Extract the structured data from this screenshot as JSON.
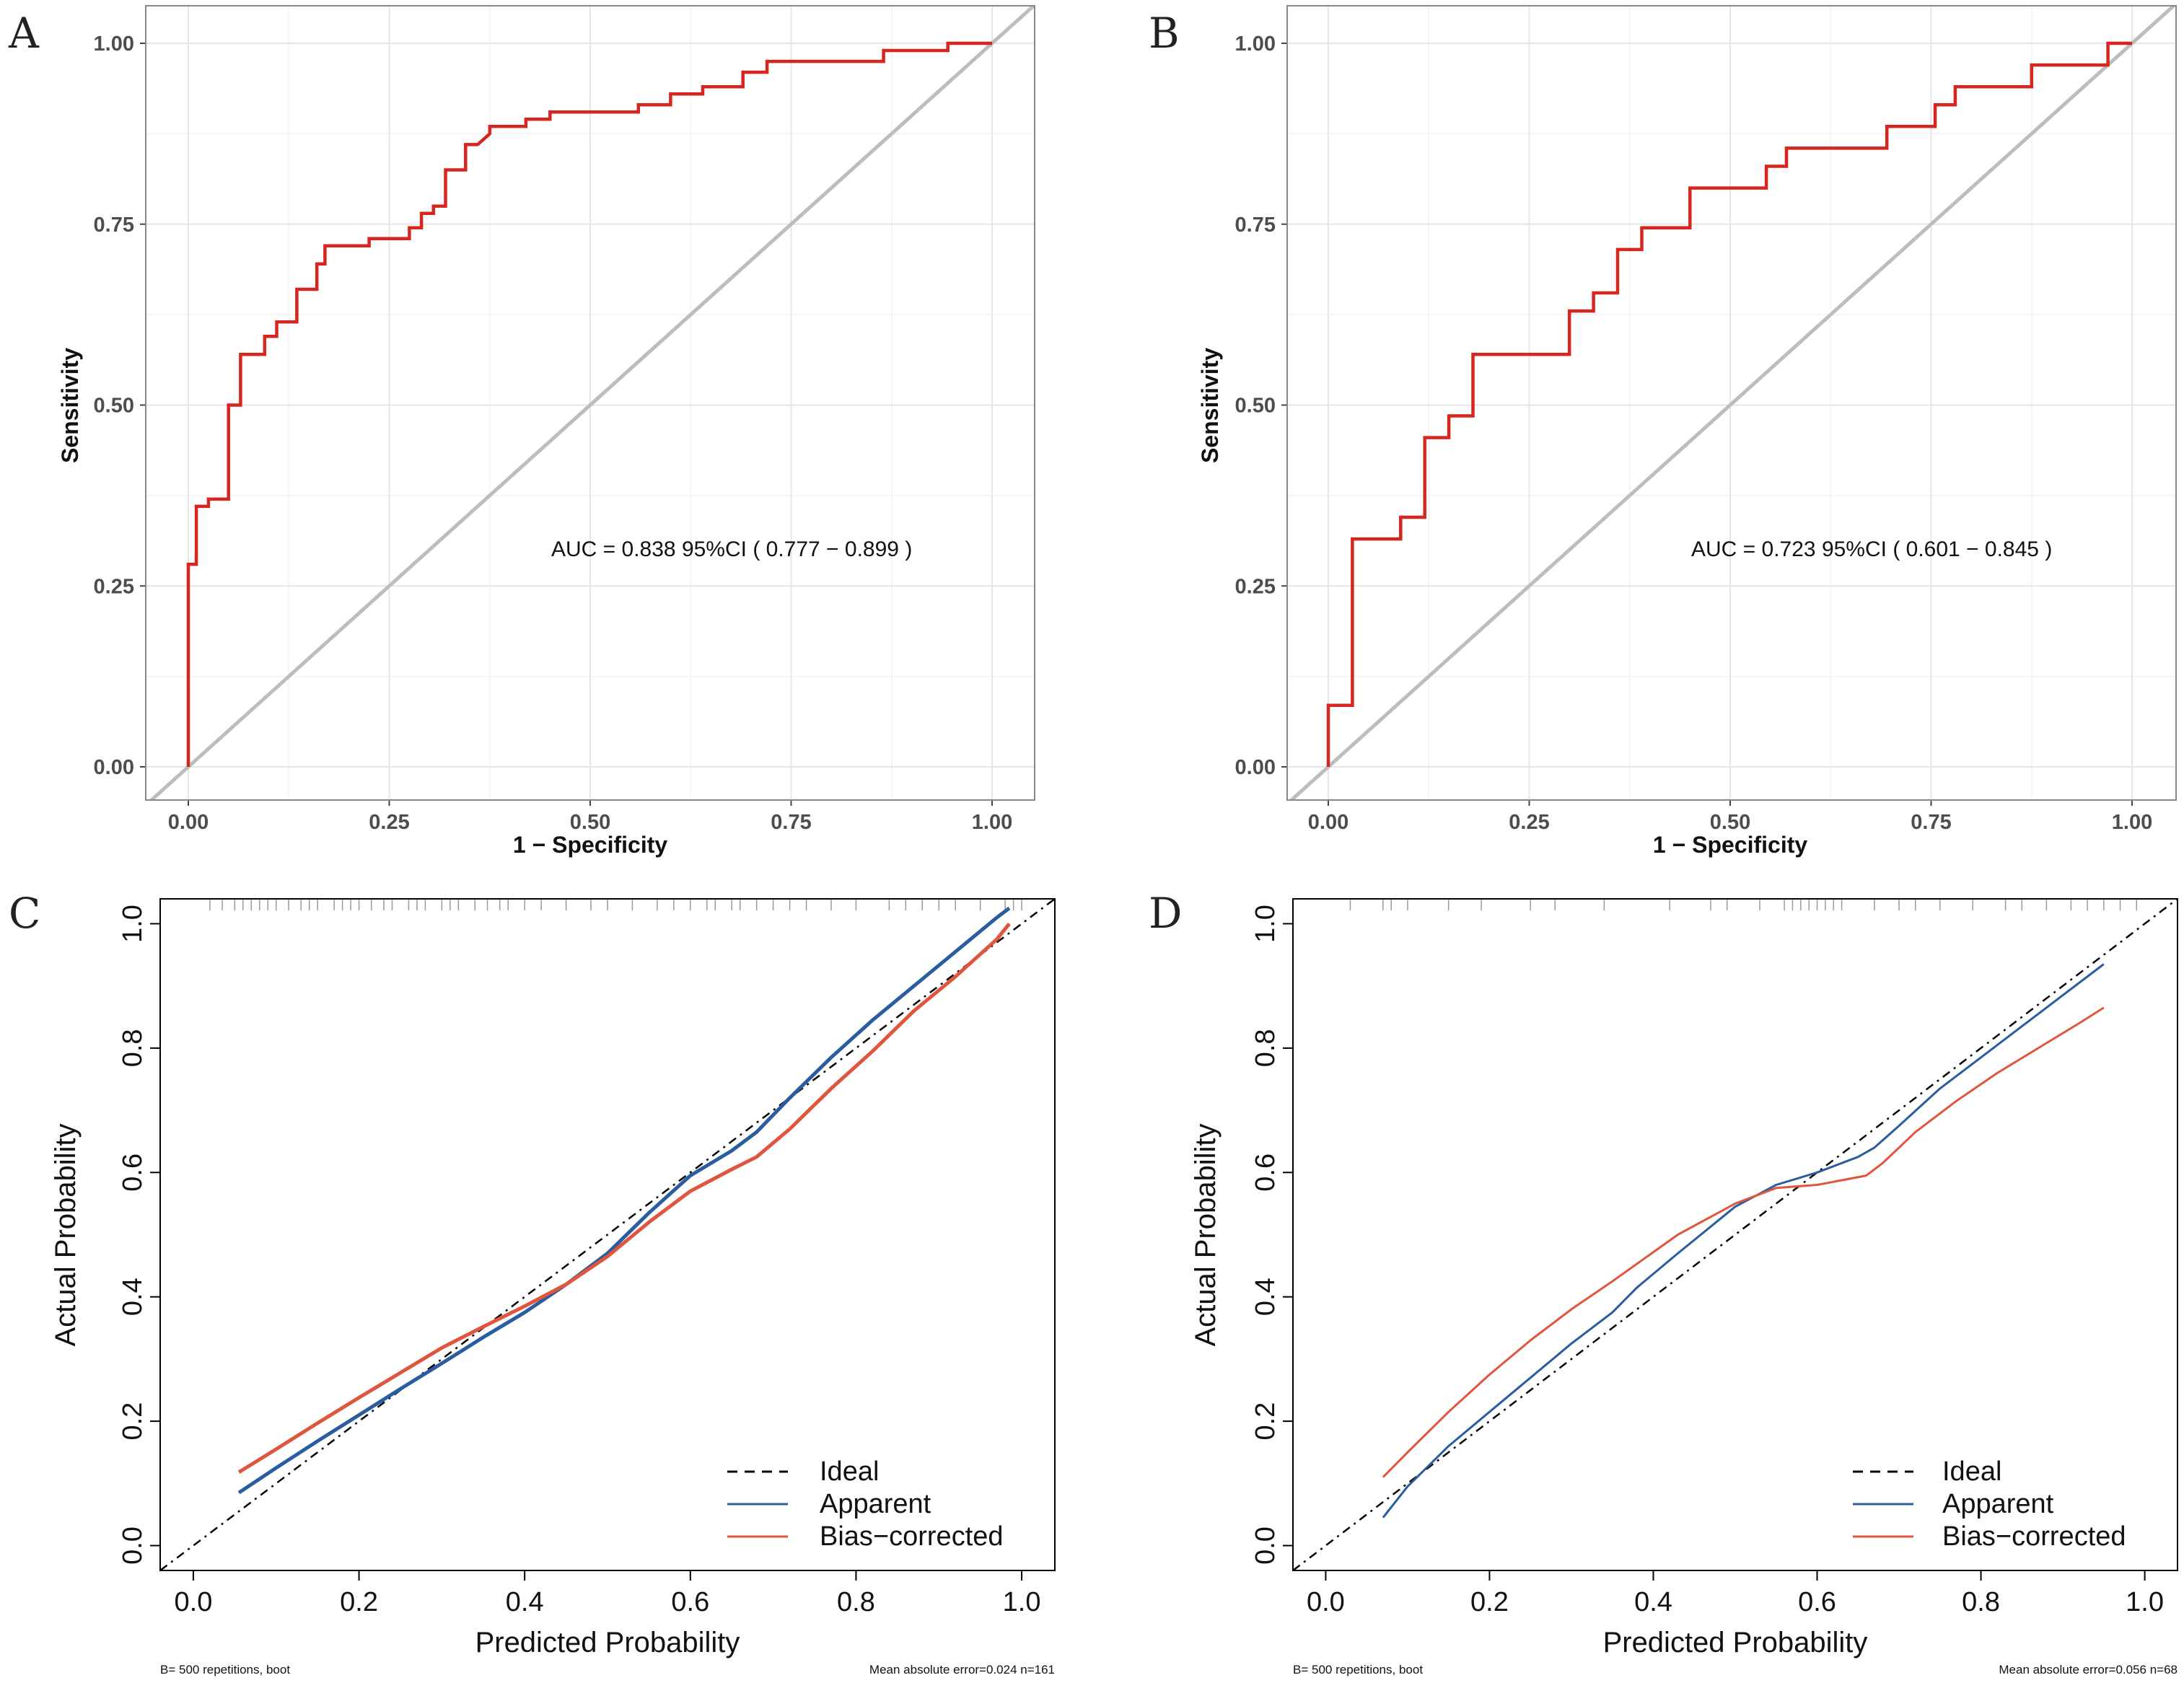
{
  "colors": {
    "roc_curve": "#d7251f",
    "diagonal": "#bdbdbd",
    "grid_major": "#e6e6e6",
    "grid_minor": "#f2f2f2",
    "panel_border": "#888888",
    "axis_text": "#4d4d4d",
    "apparent": "#2a5d9f",
    "bias_corrected": "#e0553d",
    "ideal": "#000000",
    "rug": "#999999"
  },
  "chart_data": [
    {
      "id": "A",
      "type": "line",
      "panel_letter": "A",
      "xlabel": "1 − Specificity",
      "ylabel": "Sensitivity",
      "xlim": [
        0,
        1
      ],
      "ylim": [
        0,
        1
      ],
      "ticks": [
        "0.00",
        "0.25",
        "0.50",
        "0.75",
        "1.00"
      ],
      "annotation": "AUC = 0.838 95%CI ( 0.777 − 0.899 )",
      "series": [
        {
          "name": "ROC",
          "x": [
            0,
            0,
            0.01,
            0.01,
            0.025,
            0.025,
            0.05,
            0.05,
            0.065,
            0.065,
            0.095,
            0.095,
            0.11,
            0.11,
            0.135,
            0.135,
            0.16,
            0.16,
            0.17,
            0.17,
            0.225,
            0.225,
            0.275,
            0.275,
            0.29,
            0.29,
            0.305,
            0.305,
            0.32,
            0.32,
            0.345,
            0.345,
            0.36,
            0.365,
            0.375,
            0.375,
            0.42,
            0.42,
            0.45,
            0.45,
            0.56,
            0.56,
            0.6,
            0.6,
            0.64,
            0.64,
            0.69,
            0.69,
            0.72,
            0.72,
            0.865,
            0.865,
            0.945,
            0.945,
            1.0
          ],
          "y": [
            0,
            0.28,
            0.28,
            0.36,
            0.36,
            0.37,
            0.37,
            0.5,
            0.5,
            0.57,
            0.57,
            0.595,
            0.595,
            0.615,
            0.615,
            0.66,
            0.66,
            0.695,
            0.695,
            0.72,
            0.72,
            0.73,
            0.73,
            0.745,
            0.745,
            0.765,
            0.765,
            0.775,
            0.775,
            0.825,
            0.825,
            0.86,
            0.86,
            0.865,
            0.875,
            0.885,
            0.885,
            0.895,
            0.895,
            0.905,
            0.905,
            0.915,
            0.915,
            0.93,
            0.93,
            0.94,
            0.94,
            0.96,
            0.96,
            0.975,
            0.975,
            0.99,
            0.99,
            1.0,
            1.0
          ]
        },
        {
          "name": "Reference",
          "x": [
            0,
            1
          ],
          "y": [
            0,
            1
          ]
        }
      ]
    },
    {
      "id": "B",
      "type": "line",
      "panel_letter": "B",
      "xlabel": "1 − Specificity",
      "ylabel": "Sensitivity",
      "xlim": [
        0,
        1
      ],
      "ylim": [
        0,
        1
      ],
      "ticks": [
        "0.00",
        "0.25",
        "0.50",
        "0.75",
        "1.00"
      ],
      "annotation": "AUC = 0.723 95%CI ( 0.601 − 0.845 )",
      "series": [
        {
          "name": "ROC",
          "x": [
            0,
            0,
            0.03,
            0.03,
            0.09,
            0.09,
            0.12,
            0.12,
            0.15,
            0.15,
            0.18,
            0.18,
            0.3,
            0.3,
            0.33,
            0.33,
            0.36,
            0.36,
            0.39,
            0.39,
            0.45,
            0.45,
            0.545,
            0.545,
            0.57,
            0.57,
            0.695,
            0.695,
            0.755,
            0.755,
            0.78,
            0.78,
            0.875,
            0.875,
            0.97,
            0.97,
            1.0
          ],
          "y": [
            0,
            0.085,
            0.085,
            0.315,
            0.315,
            0.345,
            0.345,
            0.455,
            0.455,
            0.485,
            0.485,
            0.57,
            0.57,
            0.63,
            0.63,
            0.655,
            0.655,
            0.715,
            0.715,
            0.745,
            0.745,
            0.8,
            0.8,
            0.83,
            0.83,
            0.855,
            0.855,
            0.885,
            0.885,
            0.915,
            0.915,
            0.94,
            0.94,
            0.97,
            0.97,
            1.0,
            1.0
          ]
        },
        {
          "name": "Reference",
          "x": [
            0,
            1
          ],
          "y": [
            0,
            1
          ]
        }
      ]
    },
    {
      "id": "C",
      "type": "line",
      "panel_letter": "C",
      "xlabel": "Predicted Probability",
      "ylabel": "Actual Probability",
      "xlim": [
        -0.04,
        1.04
      ],
      "ylim": [
        -0.04,
        1.04
      ],
      "ticks": [
        "0.0",
        "0.2",
        "0.4",
        "0.6",
        "0.8",
        "1.0"
      ],
      "legend": [
        "Ideal",
        "Apparent",
        "Bias−corrected"
      ],
      "legend_position": "bottom-right",
      "footer_left": "B= 500 repetitions, boot",
      "footer_right": "Mean absolute error=0.024 n=161",
      "rug": [
        0.02,
        0.035,
        0.05,
        0.06,
        0.07,
        0.08,
        0.09,
        0.1,
        0.115,
        0.13,
        0.14,
        0.15,
        0.17,
        0.18,
        0.19,
        0.2,
        0.215,
        0.23,
        0.24,
        0.26,
        0.27,
        0.28,
        0.3,
        0.31,
        0.32,
        0.34,
        0.355,
        0.37,
        0.38,
        0.4,
        0.42,
        0.45,
        0.48,
        0.5,
        0.53,
        0.56,
        0.58,
        0.6,
        0.62,
        0.63,
        0.65,
        0.66,
        0.68,
        0.7,
        0.72,
        0.74,
        0.77,
        0.8,
        0.84,
        0.86,
        0.88,
        0.9,
        0.92,
        0.95,
        0.98,
        0.99,
        1.0
      ],
      "series": [
        {
          "name": "Ideal",
          "x": [
            -0.04,
            1.04
          ],
          "y": [
            -0.04,
            1.04
          ]
        },
        {
          "name": "Apparent",
          "x": [
            0.055,
            0.1,
            0.15,
            0.2,
            0.25,
            0.3,
            0.35,
            0.4,
            0.45,
            0.5,
            0.55,
            0.6,
            0.65,
            0.68,
            0.72,
            0.77,
            0.82,
            0.87,
            0.92,
            0.97,
            0.985
          ],
          "y": [
            0.085,
            0.125,
            0.168,
            0.21,
            0.252,
            0.293,
            0.335,
            0.375,
            0.42,
            0.47,
            0.535,
            0.595,
            0.635,
            0.665,
            0.72,
            0.785,
            0.845,
            0.9,
            0.955,
            1.01,
            1.025
          ]
        },
        {
          "name": "Bias−corrected",
          "x": [
            0.055,
            0.1,
            0.15,
            0.2,
            0.25,
            0.3,
            0.35,
            0.4,
            0.45,
            0.5,
            0.55,
            0.6,
            0.65,
            0.68,
            0.72,
            0.77,
            0.82,
            0.87,
            0.92,
            0.97,
            0.985
          ],
          "y": [
            0.118,
            0.155,
            0.197,
            0.238,
            0.278,
            0.318,
            0.352,
            0.385,
            0.42,
            0.465,
            0.52,
            0.57,
            0.605,
            0.625,
            0.67,
            0.735,
            0.795,
            0.86,
            0.915,
            0.975,
            1.0
          ]
        }
      ]
    },
    {
      "id": "D",
      "type": "line",
      "panel_letter": "D",
      "xlabel": "Predicted Probability",
      "ylabel": "Actual Probability",
      "xlim": [
        -0.04,
        1.04
      ],
      "ylim": [
        -0.04,
        1.04
      ],
      "ticks": [
        "0.0",
        "0.2",
        "0.4",
        "0.6",
        "0.8",
        "1.0"
      ],
      "legend": [
        "Ideal",
        "Apparent",
        "Bias−corrected"
      ],
      "legend_position": "bottom-right",
      "footer_left": "B= 500 repetitions, boot",
      "footer_right": "Mean absolute error=0.056 n=68",
      "rug": [
        0.03,
        0.07,
        0.08,
        0.1,
        0.15,
        0.19,
        0.25,
        0.28,
        0.34,
        0.42,
        0.47,
        0.49,
        0.53,
        0.56,
        0.57,
        0.58,
        0.59,
        0.6,
        0.61,
        0.62,
        0.63,
        0.67,
        0.7,
        0.72,
        0.75,
        0.79,
        0.83,
        0.85,
        0.88,
        0.91,
        0.93,
        0.95,
        0.97,
        0.99
      ],
      "series": [
        {
          "name": "Ideal",
          "x": [
            -0.04,
            1.04
          ],
          "y": [
            -0.04,
            1.04
          ]
        },
        {
          "name": "Apparent",
          "x": [
            0.07,
            0.1,
            0.15,
            0.2,
            0.25,
            0.3,
            0.35,
            0.38,
            0.43,
            0.5,
            0.55,
            0.6,
            0.65,
            0.67,
            0.7,
            0.75,
            0.8,
            0.85,
            0.9,
            0.95
          ],
          "y": [
            0.045,
            0.095,
            0.16,
            0.215,
            0.27,
            0.325,
            0.375,
            0.415,
            0.47,
            0.545,
            0.58,
            0.6,
            0.625,
            0.64,
            0.675,
            0.735,
            0.785,
            0.835,
            0.885,
            0.935
          ]
        },
        {
          "name": "Bias−corrected",
          "x": [
            0.07,
            0.1,
            0.15,
            0.2,
            0.25,
            0.3,
            0.35,
            0.43,
            0.5,
            0.55,
            0.6,
            0.66,
            0.68,
            0.72,
            0.77,
            0.82,
            0.87,
            0.92,
            0.95
          ],
          "y": [
            0.11,
            0.15,
            0.215,
            0.275,
            0.33,
            0.38,
            0.425,
            0.5,
            0.55,
            0.575,
            0.58,
            0.595,
            0.615,
            0.665,
            0.715,
            0.76,
            0.8,
            0.84,
            0.865
          ]
        }
      ]
    }
  ]
}
